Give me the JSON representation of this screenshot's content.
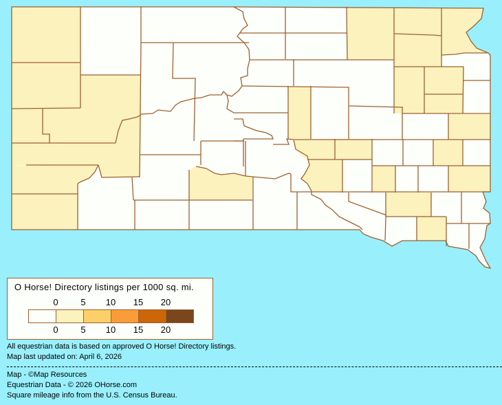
{
  "map": {
    "region": "South Dakota counties",
    "colors": {
      "background": "#99F0FC",
      "border": "#9C6030",
      "bins": [
        "#FDFFFA",
        "#FBF2BE",
        "#FCD068",
        "#FA9C38",
        "#CC6608",
        "#7A461C"
      ]
    }
  },
  "legend": {
    "title": "O Horse! Directory listings per 1000 sq. mi.",
    "top_ticks": [
      "0",
      "5",
      "10",
      "15",
      "20"
    ],
    "bottom_ticks": [
      "0",
      "5",
      "10",
      "15",
      "20"
    ]
  },
  "notes": {
    "line1": "All equestrian data is based on approved O Horse! Directory listings.",
    "line2": "Map last updated on: April 6, 2026"
  },
  "credits": {
    "map": "Map - ©Map Resources",
    "data": "Equestrian Data - © 2026 OHorse.com",
    "census": "Square mileage info from the U.S. Census Bureau."
  }
}
